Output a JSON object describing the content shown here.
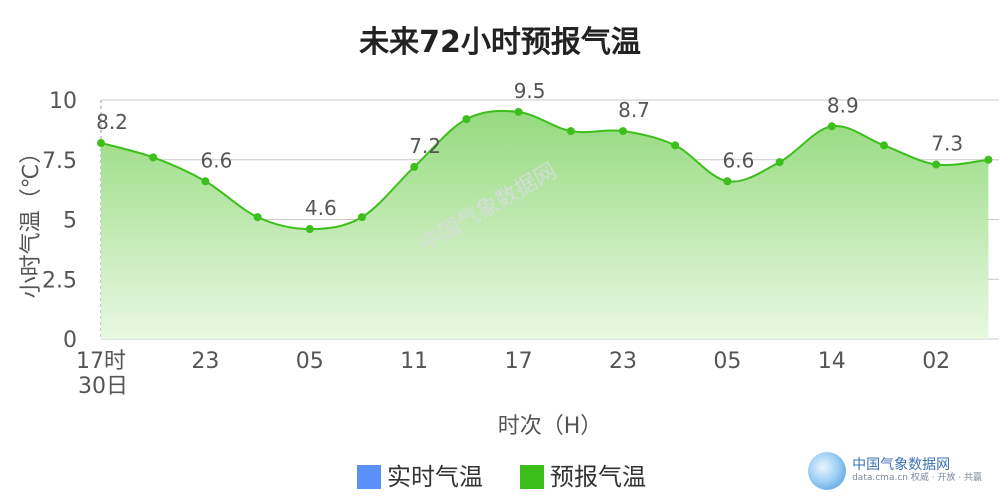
{
  "chart_data": {
    "type": "area",
    "title": "未来72小时预报气温",
    "xlabel": "时次（H）",
    "ylabel": "小时气温（℃）",
    "ylim": [
      0,
      10
    ],
    "yticks": [
      "0",
      "2.5",
      "5",
      "7.5",
      "10"
    ],
    "xtick_labels": [
      {
        "i": 0,
        "label": "17时"
      },
      {
        "i": 2,
        "label": "23"
      },
      {
        "i": 4,
        "label": "05"
      },
      {
        "i": 6,
        "label": "11"
      },
      {
        "i": 8,
        "label": "17"
      },
      {
        "i": 10,
        "label": "23"
      },
      {
        "i": 12,
        "label": "05"
      },
      {
        "i": 14,
        "label": "14"
      },
      {
        "i": 16,
        "label": "02"
      }
    ],
    "date_label": "30日",
    "grid": true,
    "legend": [
      {
        "name": "实时气温",
        "color": "#5b8ff9"
      },
      {
        "name": "预报气温",
        "color": "#3cbf1b"
      }
    ],
    "series": [
      {
        "name": "预报气温",
        "color": "#3cbf1b",
        "values": [
          8.2,
          7.6,
          6.6,
          5.1,
          4.6,
          5.1,
          7.2,
          9.2,
          9.5,
          8.7,
          8.7,
          8.1,
          6.6,
          7.4,
          8.9,
          8.1,
          7.3,
          7.5
        ],
        "labels": [
          {
            "i": 0,
            "text": "8.2"
          },
          {
            "i": 2,
            "text": "6.6"
          },
          {
            "i": 4,
            "text": "4.6"
          },
          {
            "i": 6,
            "text": "7.2"
          },
          {
            "i": 8,
            "text": "9.5"
          },
          {
            "i": 10,
            "text": "8.7"
          },
          {
            "i": 12,
            "text": "6.6"
          },
          {
            "i": 14,
            "text": "8.9"
          },
          {
            "i": 16,
            "text": "7.3"
          }
        ]
      }
    ]
  },
  "watermark": "中国气象数据网",
  "logo": {
    "name": "中国气象数据网",
    "subtitle": "data.cma.cn 权威 · 开放 · 共赢"
  }
}
